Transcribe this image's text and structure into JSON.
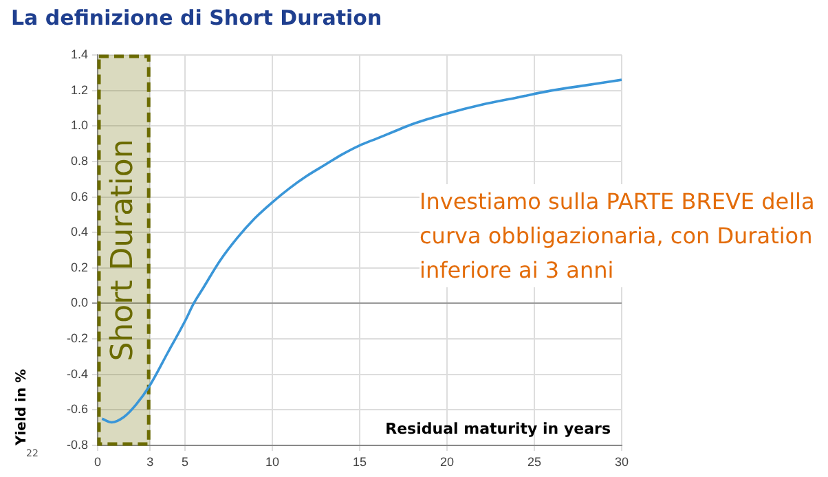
{
  "chart_data": {
    "type": "line",
    "title": "La definizione di Short Duration",
    "xlabel": "Residual maturity in years",
    "ylabel": "Yield in %",
    "x": [
      0.25,
      0.8,
      1.5,
      2.2,
      3,
      4,
      5,
      5.5,
      6,
      7,
      8,
      9,
      10,
      11,
      12,
      13,
      14,
      15,
      16,
      17,
      18,
      20,
      22,
      24,
      26,
      28,
      30
    ],
    "series": [
      {
        "color": "#3a96d8",
        "values": [
          -0.65,
          -0.67,
          -0.64,
          -0.57,
          -0.46,
          -0.28,
          -0.1,
          0,
          0.08,
          0.24,
          0.37,
          0.48,
          0.57,
          0.65,
          0.72,
          0.78,
          0.84,
          0.89,
          0.93,
          0.97,
          1.01,
          1.07,
          1.12,
          1.16,
          1.2,
          1.23,
          1.26
        ]
      }
    ],
    "xlim": [
      0,
      30
    ],
    "xticks": [
      0,
      3,
      5,
      10,
      15,
      20,
      25,
      30
    ],
    "ylim": [
      -0.8,
      1.4
    ],
    "yticks": [
      {
        "value": -0.8,
        "label": "-0.8"
      },
      {
        "value": -0.6,
        "label": "-0.6"
      },
      {
        "value": -0.4,
        "label": "-0.4"
      },
      {
        "value": -0.2,
        "label": "-0.2"
      },
      {
        "value": 0,
        "label": "0.0"
      },
      {
        "value": 0.2,
        "label": "0.2"
      },
      {
        "value": 0.4,
        "label": "0.4"
      },
      {
        "value": 0.6,
        "label": "0.6"
      },
      {
        "value": 0.8,
        "label": "0.8"
      },
      {
        "value": 1,
        "label": "1.0"
      },
      {
        "value": 1.2,
        "label": "1.2"
      },
      {
        "value": 1.4,
        "label": "1.4"
      }
    ],
    "bands": [
      {
        "axis": "x",
        "from": 0,
        "to": 3,
        "label": "Short Duration",
        "color": "#6b6b00"
      }
    ],
    "annotations": [
      "Investiamo sulla PARTE BREVE della curva obbligazionaria, con Duration inferiore ai 3 anni",
      "22"
    ],
    "grid": true,
    "legend": false,
    "marker": "none",
    "line_style": "solid"
  }
}
